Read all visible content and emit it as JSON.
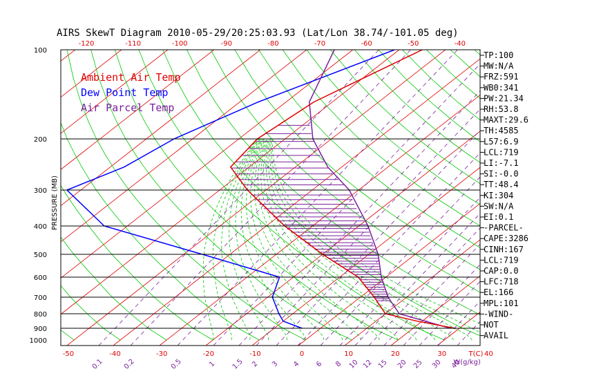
{
  "chart_data": {
    "type": "line",
    "title": "AIRS SkewT Diagram 2010-05-29/20:25:03.93 (Lat/Lon 38.74/-101.05 deg)",
    "ylabel": "PRESSURE (MB)",
    "xlabel_unit": "T(C)",
    "mixing_unit": "W(g/kg)",
    "pressure_ticks": [
      "100",
      "200",
      "300",
      "400",
      "500",
      "600",
      "700",
      "800",
      "900",
      "1000"
    ],
    "pressure_levels": [
      100,
      200,
      300,
      400,
      500,
      600,
      700,
      800,
      900
    ],
    "top_temp_ticks": [
      "-120",
      "-110",
      "-100",
      "-90",
      "-80",
      "-70",
      "-60",
      "-50",
      "-40"
    ],
    "bottom_temp_ticks": [
      "-50",
      "-40",
      "-30",
      "-20",
      "-10",
      "0",
      "10",
      "20",
      "30",
      "40"
    ],
    "mixing_ratio_ticks": [
      "0.1",
      "0.2",
      "0.5",
      "1",
      "1.5",
      "2",
      "3",
      "4",
      "6",
      "8",
      "10",
      "12",
      "15",
      "20",
      "25",
      "30",
      "40"
    ],
    "legend": [
      {
        "label": "Ambient Air Temp",
        "color": "#e00000"
      },
      {
        "label": "Dew Point Temp",
        "color": "#0000ff"
      },
      {
        "label": "Air Parcel Temp",
        "color": "#7a1f9a"
      }
    ],
    "series": [
      {
        "name": "Ambient Air Temp",
        "color": "#e00000",
        "points": [
          [
            100,
            -55
          ],
          [
            150,
            -64
          ],
          [
            200,
            -66
          ],
          [
            250,
            -64
          ],
          [
            300,
            -54
          ],
          [
            400,
            -36
          ],
          [
            500,
            -20
          ],
          [
            600,
            -6
          ],
          [
            700,
            3
          ],
          [
            800,
            10
          ],
          [
            850,
            19
          ],
          [
            900,
            29
          ]
        ]
      },
      {
        "name": "Dew Point Temp",
        "color": "#0000ff",
        "points": [
          [
            100,
            -61
          ],
          [
            150,
            -76
          ],
          [
            200,
            -84
          ],
          [
            250,
            -87
          ],
          [
            300,
            -93
          ],
          [
            400,
            -75
          ],
          [
            500,
            -46
          ],
          [
            600,
            -23
          ],
          [
            700,
            -19
          ],
          [
            800,
            -13
          ],
          [
            850,
            -10
          ],
          [
            900,
            -4
          ]
        ]
      },
      {
        "name": "Air Parcel Temp",
        "color": "#7a1f9a",
        "points": [
          [
            100,
            -74
          ],
          [
            150,
            -65
          ],
          [
            200,
            -54
          ],
          [
            250,
            -43
          ],
          [
            300,
            -32
          ],
          [
            400,
            -18
          ],
          [
            500,
            -8
          ],
          [
            600,
            -1
          ],
          [
            700,
            6
          ],
          [
            800,
            13
          ],
          [
            900,
            28
          ]
        ]
      }
    ],
    "indices": [
      "TP:100",
      "MW:N/A",
      "FRZ:591",
      "WB0:341",
      "PW:21.34",
      "RH:53.8",
      "MAXT:29.6",
      "TH:4585",
      "L57:6.9",
      "LCL:719",
      "LI:-7.1",
      "SI:-0.0",
      "TT:48.4",
      "KI:304",
      "SW:N/A",
      "EI:0.1",
      "-PARCEL-",
      "CAPE:3286",
      "CINH:167",
      "LCL:719",
      "CAP:0.0",
      "LFC:718",
      "EL:166",
      "MPL:101",
      "-WIND-",
      "NOT",
      "AVAIL"
    ],
    "colors": {
      "isotherm": "#e00000",
      "dry_adiabat": "#00c800",
      "moist_adiabat": "#00c800",
      "mixing_ratio": "#7a1f9a",
      "cape_hatch": "#7a1f9a"
    }
  }
}
